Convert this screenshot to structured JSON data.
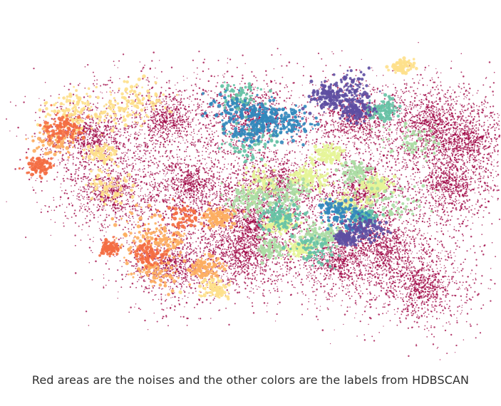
{
  "caption": "Red areas are the noises and the other colors are the labels from HDBSCAN",
  "chart_data": {
    "type": "scatter",
    "title": "",
    "xlabel": "",
    "ylabel": "",
    "axes_visible": false,
    "grid": false,
    "legend": "none",
    "colors": {
      "noise": "#9e0142",
      "cluster_palette": [
        "#d53e4f",
        "#f46d43",
        "#fdae61",
        "#fee08b",
        "#e6f598",
        "#abdda4",
        "#66c2a5",
        "#3288bd",
        "#5e4fa2"
      ]
    },
    "series": [
      {
        "name": "",
        "color": "#9e0142",
        "role": "noise",
        "points": [
          [
            0.15,
            0.34
          ],
          [
            0.32,
            0.29
          ],
          [
            0.5,
            0.28
          ],
          [
            0.72,
            0.29
          ],
          [
            0.88,
            0.3
          ],
          [
            0.2,
            0.52
          ],
          [
            0.37,
            0.5
          ],
          [
            0.55,
            0.5
          ],
          [
            0.73,
            0.52
          ],
          [
            0.92,
            0.5
          ],
          [
            0.33,
            0.75
          ],
          [
            0.48,
            0.72
          ],
          [
            0.68,
            0.74
          ],
          [
            0.86,
            0.82
          ],
          [
            0.5,
            0.62
          ],
          [
            0.95,
            0.36
          ],
          [
            0.78,
            0.7
          ]
        ]
      },
      {
        "name": "",
        "color": "#fee08b",
        "role": "cluster",
        "points": [
          [
            0.12,
            0.26
          ],
          [
            0.18,
            0.4
          ],
          [
            0.22,
            0.27
          ],
          [
            0.2,
            0.5
          ],
          [
            0.82,
            0.12
          ],
          [
            0.42,
            0.83
          ],
          [
            0.26,
            0.22
          ]
        ]
      },
      {
        "name": "",
        "color": "#fdae61",
        "role": "cluster",
        "points": [
          [
            0.08,
            0.36
          ],
          [
            0.27,
            0.65
          ],
          [
            0.33,
            0.68
          ],
          [
            0.43,
            0.6
          ],
          [
            0.3,
            0.78
          ],
          [
            0.4,
            0.76
          ]
        ]
      },
      {
        "name": "",
        "color": "#f46d43",
        "role": "cluster",
        "points": [
          [
            0.05,
            0.44
          ],
          [
            0.1,
            0.32
          ],
          [
            0.28,
            0.72
          ],
          [
            0.36,
            0.6
          ],
          [
            0.2,
            0.7
          ]
        ]
      },
      {
        "name": "",
        "color": "#e6f598",
        "role": "cluster",
        "points": [
          [
            0.52,
            0.5
          ],
          [
            0.56,
            0.62
          ],
          [
            0.62,
            0.48
          ],
          [
            0.7,
            0.56
          ],
          [
            0.6,
            0.7
          ],
          [
            0.76,
            0.5
          ],
          [
            0.66,
            0.4
          ]
        ]
      },
      {
        "name": "",
        "color": "#abdda4",
        "role": "cluster",
        "points": [
          [
            0.5,
            0.55
          ],
          [
            0.58,
            0.52
          ],
          [
            0.66,
            0.66
          ],
          [
            0.72,
            0.46
          ],
          [
            0.54,
            0.7
          ],
          [
            0.84,
            0.36
          ],
          [
            0.8,
            0.56
          ]
        ]
      },
      {
        "name": "",
        "color": "#66c2a5",
        "role": "cluster",
        "points": [
          [
            0.48,
            0.22
          ],
          [
            0.56,
            0.6
          ],
          [
            0.63,
            0.7
          ],
          [
            0.78,
            0.26
          ],
          [
            0.74,
            0.6
          ],
          [
            0.5,
            0.36
          ]
        ]
      },
      {
        "name": "",
        "color": "#3288bd",
        "role": "cluster",
        "points": [
          [
            0.52,
            0.28
          ],
          [
            0.5,
            0.33
          ],
          [
            0.58,
            0.3
          ],
          [
            0.72,
            0.62
          ],
          [
            0.68,
            0.58
          ],
          [
            0.46,
            0.26
          ]
        ]
      },
      {
        "name": "",
        "color": "#5e4fa2",
        "role": "cluster",
        "points": [
          [
            0.66,
            0.22
          ],
          [
            0.72,
            0.26
          ],
          [
            0.7,
            0.2
          ],
          [
            0.74,
            0.64
          ],
          [
            0.7,
            0.67
          ]
        ]
      }
    ]
  }
}
